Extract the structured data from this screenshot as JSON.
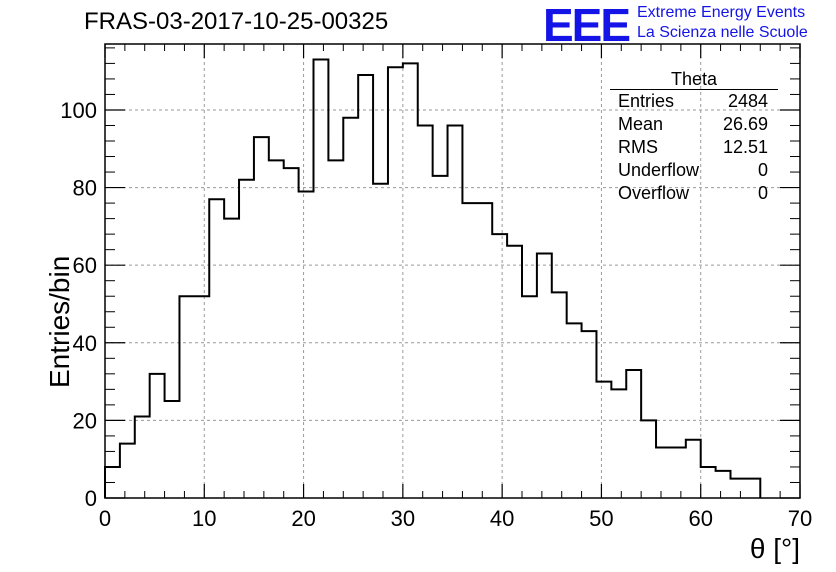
{
  "title": "FRAS-03-2017-10-25-00325",
  "logo": {
    "mark": "EEE",
    "line1": "Extreme Energy Events",
    "line2": "La Scienza nelle Scuole",
    "color": "#1414e6"
  },
  "stats": {
    "title": "Theta",
    "rows": [
      {
        "label": "Entries",
        "value": "2484"
      },
      {
        "label": "Mean",
        "value": "26.69"
      },
      {
        "label": "RMS",
        "value": "12.51"
      },
      {
        "label": "Underflow",
        "value": "0"
      },
      {
        "label": "Overflow",
        "value": "0"
      }
    ]
  },
  "chart_data": {
    "type": "bar",
    "histogram": true,
    "bin_edges_start": 0,
    "bin_width": 1.5,
    "values": [
      8,
      14,
      21,
      32,
      25,
      52,
      52,
      77,
      72,
      82,
      93,
      87,
      85,
      79,
      113,
      87,
      98,
      109,
      81,
      111,
      112,
      96,
      83,
      96,
      76,
      76,
      68,
      65,
      52,
      63,
      53,
      45,
      43,
      30,
      28,
      33,
      20,
      13,
      13,
      15,
      8,
      7,
      5,
      5
    ],
    "xlabel": "θ [°]",
    "ylabel": "Entries/bin",
    "xlim": [
      0,
      70
    ],
    "ylim": [
      0,
      117
    ],
    "x_ticks": [
      0,
      10,
      20,
      30,
      40,
      50,
      60,
      70
    ],
    "y_ticks": [
      0,
      20,
      40,
      60,
      80,
      100
    ],
    "grid": true,
    "line_color": "#000000"
  }
}
